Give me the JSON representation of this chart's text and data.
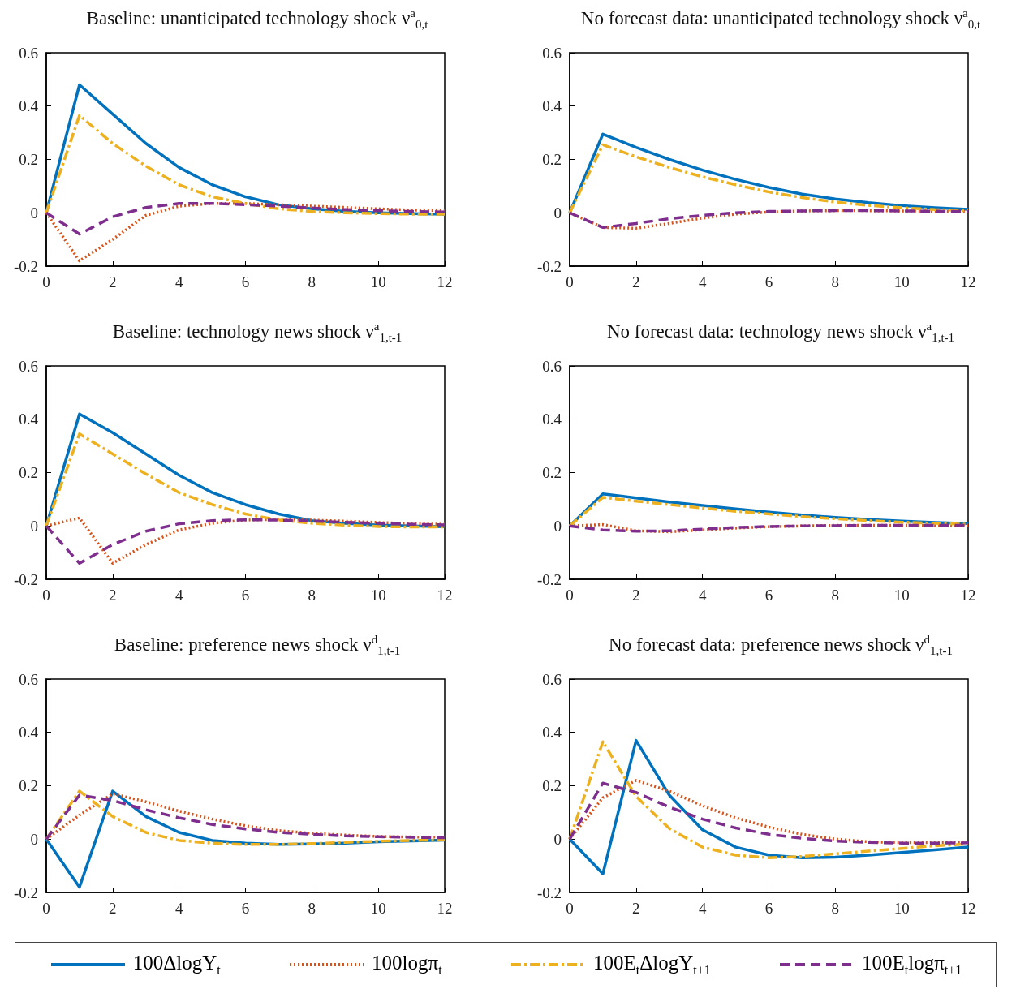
{
  "chart_data": [
    {
      "type": "line",
      "title": "Baseline: unanticipated technology shock ν$^{a}$$_{0,t}$",
      "x": [
        0,
        1,
        2,
        3,
        4,
        5,
        6,
        7,
        8,
        9,
        10,
        11,
        12
      ],
      "xlim": [
        0,
        12
      ],
      "xticks": [
        0,
        2,
        4,
        6,
        8,
        10,
        12
      ],
      "ylim": [
        -0.2,
        0.6
      ],
      "yticks": [
        -0.2,
        0,
        0.2,
        0.4,
        0.6
      ],
      "grid": false,
      "legend": "bottom",
      "marker": "none",
      "series": [
        {
          "name": "100ΔlogY$_{t}$",
          "color": "#0072bd",
          "line_style": "solid",
          "values": [
            0,
            0.48,
            0.37,
            0.26,
            0.17,
            0.105,
            0.06,
            0.03,
            0.015,
            0.005,
            0,
            -0.003,
            -0.005
          ]
        },
        {
          "name": "100logπ$_{t}$",
          "color": "#d95319",
          "line_style": "dotted",
          "values": [
            0,
            -0.18,
            -0.1,
            -0.01,
            0.025,
            0.035,
            0.035,
            0.03,
            0.025,
            0.02,
            0.015,
            0.01,
            0.008
          ]
        },
        {
          "name": "100E$_{t}$ΔlogY$_{t+1}$",
          "color": "#edb120",
          "line_style": "dashdot",
          "values": [
            0,
            0.365,
            0.26,
            0.175,
            0.105,
            0.06,
            0.035,
            0.015,
            0.005,
            0,
            -0.003,
            -0.005,
            -0.005
          ]
        },
        {
          "name": "100E$_{t}$logπ$_{t+1}$",
          "color": "#7e2f8e",
          "line_style": "dashed",
          "values": [
            0,
            -0.08,
            -0.015,
            0.02,
            0.035,
            0.035,
            0.03,
            0.025,
            0.018,
            0.012,
            0.008,
            0.005,
            0.003
          ]
        }
      ]
    },
    {
      "type": "line",
      "title": "No forecast data: unanticipated technology shock ν$^{a}$$_{0,t}$",
      "x": [
        0,
        1,
        2,
        3,
        4,
        5,
        6,
        7,
        8,
        9,
        10,
        11,
        12
      ],
      "xlim": [
        0,
        12
      ],
      "xticks": [
        0,
        2,
        4,
        6,
        8,
        10,
        12
      ],
      "ylim": [
        -0.2,
        0.6
      ],
      "yticks": [
        -0.2,
        0,
        0.2,
        0.4,
        0.6
      ],
      "grid": false,
      "marker": "none",
      "series": [
        {
          "color": "#0072bd",
          "line_style": "solid",
          "values": [
            0,
            0.295,
            0.245,
            0.2,
            0.16,
            0.125,
            0.095,
            0.07,
            0.052,
            0.038,
            0.027,
            0.019,
            0.013
          ]
        },
        {
          "color": "#d95319",
          "line_style": "dotted",
          "values": [
            0,
            -0.055,
            -0.058,
            -0.04,
            -0.02,
            -0.005,
            0.003,
            0.007,
            0.008,
            0.008,
            0.007,
            0.006,
            0.005
          ]
        },
        {
          "color": "#edb120",
          "line_style": "dashdot",
          "values": [
            0,
            0.255,
            0.21,
            0.17,
            0.135,
            0.105,
            0.078,
            0.057,
            0.04,
            0.028,
            0.019,
            0.012,
            0.008
          ]
        },
        {
          "color": "#7e2f8e",
          "line_style": "dashed",
          "values": [
            0,
            -0.055,
            -0.04,
            -0.022,
            -0.01,
            0,
            0.005,
            0.007,
            0.008,
            0.008,
            0.007,
            0.006,
            0.005
          ]
        }
      ]
    },
    {
      "type": "line",
      "title": "Baseline: technology news shock ν$^{a}$$_{1,t-1}$",
      "x": [
        0,
        1,
        2,
        3,
        4,
        5,
        6,
        7,
        8,
        9,
        10,
        11,
        12
      ],
      "xlim": [
        0,
        12
      ],
      "xticks": [
        0,
        2,
        4,
        6,
        8,
        10,
        12
      ],
      "ylim": [
        -0.2,
        0.6
      ],
      "yticks": [
        -0.2,
        0,
        0.2,
        0.4,
        0.6
      ],
      "grid": false,
      "marker": "none",
      "series": [
        {
          "color": "#0072bd",
          "line_style": "solid",
          "values": [
            0,
            0.42,
            0.35,
            0.27,
            0.19,
            0.125,
            0.08,
            0.045,
            0.02,
            0.01,
            0.003,
            0,
            -0.003
          ]
        },
        {
          "color": "#d95319",
          "line_style": "dotted",
          "values": [
            0,
            0.03,
            -0.14,
            -0.07,
            -0.015,
            0.01,
            0.022,
            0.025,
            0.022,
            0.018,
            0.013,
            0.009,
            0.006
          ]
        },
        {
          "color": "#edb120",
          "line_style": "dashdot",
          "values": [
            0,
            0.345,
            0.27,
            0.195,
            0.125,
            0.08,
            0.045,
            0.022,
            0.01,
            0.003,
            -0.002,
            -0.004,
            -0.004
          ]
        },
        {
          "color": "#7e2f8e",
          "line_style": "dashed",
          "values": [
            0,
            -0.14,
            -0.07,
            -0.02,
            0.008,
            0.02,
            0.023,
            0.022,
            0.018,
            0.014,
            0.01,
            0.006,
            0.004
          ]
        }
      ]
    },
    {
      "type": "line",
      "title": "No forecast data: technology news shock ν$^{a}$$_{1,t-1}$",
      "x": [
        0,
        1,
        2,
        3,
        4,
        5,
        6,
        7,
        8,
        9,
        10,
        11,
        12
      ],
      "xlim": [
        0,
        12
      ],
      "xticks": [
        0,
        2,
        4,
        6,
        8,
        10,
        12
      ],
      "ylim": [
        -0.2,
        0.6
      ],
      "yticks": [
        -0.2,
        0,
        0.2,
        0.4,
        0.6
      ],
      "grid": false,
      "marker": "none",
      "series": [
        {
          "color": "#0072bd",
          "line_style": "solid",
          "values": [
            0,
            0.12,
            0.105,
            0.09,
            0.077,
            0.064,
            0.052,
            0.041,
            0.032,
            0.024,
            0.018,
            0.013,
            0.009
          ]
        },
        {
          "color": "#d95319",
          "line_style": "dotted",
          "values": [
            0,
            0.005,
            -0.018,
            -0.022,
            -0.015,
            -0.008,
            -0.003,
            0,
            0.002,
            0.002,
            0.002,
            0.002,
            0.002
          ]
        },
        {
          "color": "#edb120",
          "line_style": "dashdot",
          "values": [
            0,
            0.107,
            0.093,
            0.08,
            0.067,
            0.055,
            0.045,
            0.035,
            0.027,
            0.02,
            0.014,
            0.01,
            0.006
          ]
        },
        {
          "color": "#7e2f8e",
          "line_style": "dashed",
          "values": [
            0,
            -0.015,
            -0.02,
            -0.018,
            -0.012,
            -0.006,
            -0.002,
            0,
            0.001,
            0.002,
            0.002,
            0.002,
            0.002
          ]
        }
      ]
    },
    {
      "type": "line",
      "title": "Baseline: preference news shock ν$^{d}$$_{1,t-1}$",
      "x": [
        0,
        1,
        2,
        3,
        4,
        5,
        6,
        7,
        8,
        9,
        10,
        11,
        12
      ],
      "xlim": [
        0,
        12
      ],
      "xticks": [
        0,
        2,
        4,
        6,
        8,
        10,
        12
      ],
      "ylim": [
        -0.2,
        0.6
      ],
      "yticks": [
        -0.2,
        0,
        0.2,
        0.4,
        0.6
      ],
      "grid": false,
      "marker": "none",
      "series": [
        {
          "color": "#0072bd",
          "line_style": "solid",
          "values": [
            0,
            -0.18,
            0.18,
            0.085,
            0.025,
            -0.005,
            -0.015,
            -0.02,
            -0.018,
            -0.015,
            -0.01,
            -0.007,
            -0.004
          ]
        },
        {
          "color": "#d95319",
          "line_style": "dotted",
          "values": [
            0,
            0.09,
            0.17,
            0.14,
            0.105,
            0.075,
            0.05,
            0.032,
            0.022,
            0.015,
            0.01,
            0.008,
            0.007
          ]
        },
        {
          "color": "#edb120",
          "line_style": "dashdot",
          "values": [
            0,
            0.18,
            0.085,
            0.025,
            -0.005,
            -0.015,
            -0.02,
            -0.02,
            -0.017,
            -0.012,
            -0.008,
            -0.005,
            -0.003
          ]
        },
        {
          "color": "#7e2f8e",
          "line_style": "dashed",
          "values": [
            0,
            0.165,
            0.145,
            0.11,
            0.08,
            0.055,
            0.038,
            0.025,
            0.018,
            0.012,
            0.009,
            0.007,
            0.005
          ]
        }
      ]
    },
    {
      "type": "line",
      "title": "No forecast data: preference news shock ν$^{d}$$_{1,t-1}$",
      "x": [
        0,
        1,
        2,
        3,
        4,
        5,
        6,
        7,
        8,
        9,
        10,
        11,
        12
      ],
      "xlim": [
        0,
        12
      ],
      "xticks": [
        0,
        2,
        4,
        6,
        8,
        10,
        12
      ],
      "ylim": [
        -0.2,
        0.6
      ],
      "yticks": [
        -0.2,
        0,
        0.2,
        0.4,
        0.6
      ],
      "grid": false,
      "marker": "none",
      "series": [
        {
          "color": "#0072bd",
          "line_style": "solid",
          "values": [
            0,
            -0.13,
            0.37,
            0.165,
            0.035,
            -0.03,
            -0.06,
            -0.07,
            -0.068,
            -0.06,
            -0.05,
            -0.04,
            -0.03
          ]
        },
        {
          "color": "#d95319",
          "line_style": "dotted",
          "values": [
            0,
            0.155,
            0.22,
            0.18,
            0.125,
            0.08,
            0.045,
            0.018,
            0,
            -0.01,
            -0.013,
            -0.013,
            -0.013
          ]
        },
        {
          "color": "#edb120",
          "line_style": "dashdot",
          "values": [
            0,
            0.365,
            0.16,
            0.04,
            -0.03,
            -0.06,
            -0.07,
            -0.065,
            -0.055,
            -0.045,
            -0.035,
            -0.025,
            -0.018
          ]
        },
        {
          "color": "#7e2f8e",
          "line_style": "dashed",
          "values": [
            0,
            0.21,
            0.175,
            0.12,
            0.075,
            0.042,
            0.018,
            0.003,
            -0.007,
            -0.012,
            -0.015,
            -0.015,
            -0.014
          ]
        }
      ]
    }
  ]
}
